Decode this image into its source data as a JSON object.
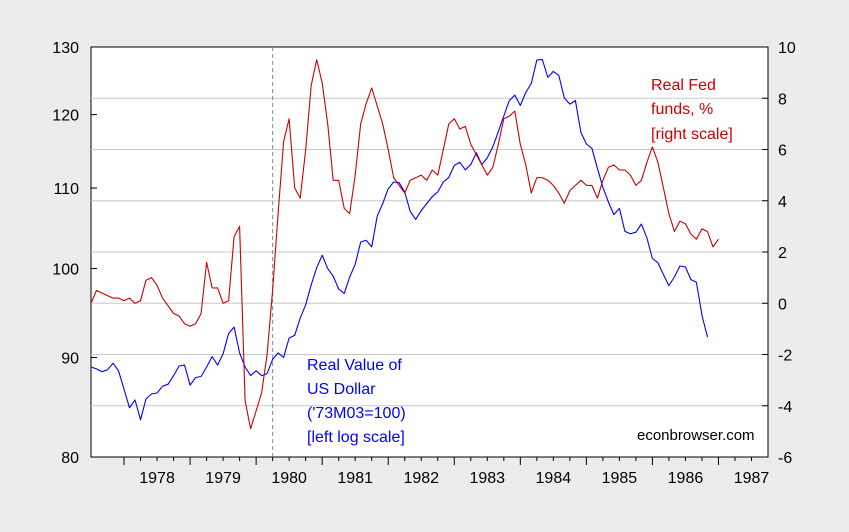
{
  "chart_data": {
    "type": "line",
    "x_start": 1977.5,
    "x_step_months": 1,
    "xlim": [
      1977.5,
      1987.75
    ],
    "x_ticks": [
      "1978",
      "1979",
      "1980",
      "1981",
      "1982",
      "1983",
      "1984",
      "1985",
      "1986",
      "1987"
    ],
    "left_axis": {
      "scale": "log",
      "ylim": [
        80,
        130
      ],
      "ticks": [
        "80",
        "90",
        "100",
        "110",
        "120",
        "130"
      ]
    },
    "right_axis": {
      "scale": "linear",
      "ylim": [
        -6,
        10
      ],
      "ticks": [
        "-6",
        "-4",
        "-2",
        "0",
        "2",
        "4",
        "6",
        "8",
        "10"
      ]
    },
    "vertical_marker": {
      "x": 1980.25,
      "style": "dashed"
    },
    "grid": true,
    "series": [
      {
        "name": "Real Value of US Dollar ('73M03=100) [left log scale]",
        "axis": "left",
        "color": "#0000ff",
        "values": [
          89.0,
          88.8,
          88.5,
          88.7,
          89.4,
          88.6,
          86.7,
          84.8,
          85.6,
          83.6,
          85.7,
          86.2,
          86.3,
          87.0,
          87.2,
          88.1,
          89.1,
          89.2,
          87.1,
          87.9,
          88.0,
          89.0,
          90.1,
          89.2,
          90.4,
          92.6,
          93.3,
          90.5,
          89.0,
          88.1,
          88.6,
          88.1,
          88.3,
          89.8,
          90.5,
          90.0,
          92.1,
          92.4,
          94.3,
          95.8,
          98.1,
          100.1,
          101.6,
          100.0,
          99.1,
          97.6,
          97.1,
          99.0,
          100.5,
          103.2,
          103.4,
          102.6,
          106.4,
          108.0,
          109.9,
          110.8,
          110.7,
          109.5,
          107.0,
          106.0,
          107.1,
          108.0,
          108.9,
          109.5,
          110.8,
          111.4,
          113.0,
          113.4,
          112.4,
          113.1,
          114.7,
          113.1,
          114.0,
          115.5,
          117.6,
          119.8,
          122.0,
          122.8,
          121.3,
          123.2,
          124.5,
          128.0,
          128.1,
          125.4,
          126.3,
          125.7,
          122.4,
          121.5,
          122.0,
          117.5,
          115.9,
          115.3,
          112.6,
          110.1,
          108.2,
          106.6,
          107.4,
          104.5,
          104.2,
          104.4,
          105.4,
          103.7,
          101.2,
          100.7,
          99.3,
          98.0,
          99.0,
          100.3,
          100.2,
          98.7,
          98.4,
          94.6,
          92.2
        ]
      },
      {
        "name": "Real Fed funds, % [right scale]",
        "axis": "right",
        "color": "#cc0000",
        "values": [
          0.0,
          0.5,
          0.4,
          0.3,
          0.2,
          0.2,
          0.1,
          0.2,
          0.0,
          0.1,
          0.9,
          1.0,
          0.7,
          0.2,
          -0.1,
          -0.4,
          -0.5,
          -0.8,
          -0.9,
          -0.8,
          -0.4,
          1.6,
          0.6,
          0.6,
          0.0,
          0.1,
          2.6,
          3.0,
          -3.8,
          -4.9,
          -4.2,
          -3.5,
          -2.0,
          0.5,
          3.5,
          6.3,
          7.2,
          4.5,
          4.1,
          6.0,
          8.5,
          9.5,
          8.6,
          7.0,
          4.8,
          4.8,
          3.7,
          3.5,
          5.0,
          7.0,
          7.8,
          8.4,
          7.7,
          7.0,
          6.0,
          4.9,
          4.6,
          4.3,
          4.8,
          4.9,
          5.0,
          4.8,
          5.2,
          5.0,
          6.0,
          7.0,
          7.2,
          6.8,
          6.9,
          6.2,
          5.8,
          5.4,
          5.0,
          5.3,
          6.2,
          7.2,
          7.3,
          7.5,
          6.2,
          5.4,
          4.3,
          4.9,
          4.9,
          4.8,
          4.6,
          4.3,
          3.9,
          4.4,
          4.6,
          4.8,
          4.6,
          4.6,
          4.1,
          4.8,
          5.3,
          5.4,
          5.2,
          5.2,
          5.0,
          4.6,
          4.8,
          5.5,
          6.1,
          5.5,
          4.5,
          3.5,
          2.8,
          3.2,
          3.1,
          2.7,
          2.5,
          2.9,
          2.8,
          2.2,
          2.5
        ]
      }
    ],
    "annotations": {
      "blue": [
        "Real Value of",
        "US Dollar",
        "('73M03=100)",
        "[left log scale]"
      ],
      "red": [
        "Real Fed",
        "funds, %",
        "[right scale]"
      ],
      "source": "econbrowser.com"
    }
  }
}
